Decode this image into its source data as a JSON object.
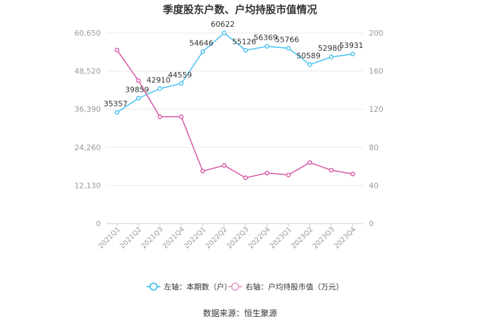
{
  "chart_data": {
    "type": "line",
    "title": "季度股东户数、户均持股市值情况",
    "categories": [
      "2021Q1",
      "2021Q2",
      "2021Q3",
      "2021Q4",
      "2022Q1",
      "2022Q2",
      "2022Q3",
      "2022Q4",
      "2023Q1",
      "2023Q2",
      "2023Q3",
      "2023Q4"
    ],
    "left_axis": {
      "ylim": [
        0,
        60650
      ],
      "ticks": [
        "0",
        "12,130",
        "24,260",
        "36,390",
        "48,520",
        "60,650"
      ]
    },
    "right_axis": {
      "ylim": [
        0,
        200
      ],
      "ticks": [
        "0",
        "40",
        "80",
        "120",
        "160",
        "200"
      ]
    },
    "series": [
      {
        "name": "左轴：本期数（户）",
        "axis": "left",
        "color": "#4fc3f0",
        "values": [
          35357,
          39859,
          42910,
          44559,
          54646,
          60622,
          55126,
          56369,
          55766,
          50589,
          52980,
          53931
        ],
        "labels": [
          "35357",
          "39859",
          "42910",
          "44559",
          "54646",
          "60622",
          "55126",
          "56369",
          "55766",
          "50589",
          "52980",
          "53931"
        ]
      },
      {
        "name": "右轴：户均持股市值（万元）",
        "axis": "right",
        "color": "#d85ca8",
        "values": [
          182,
          150,
          112,
          112,
          55,
          61,
          48,
          53,
          51,
          64,
          56,
          52
        ]
      }
    ],
    "grid": true,
    "legend": "bottom"
  },
  "source": "数据来源：恒生聚源"
}
